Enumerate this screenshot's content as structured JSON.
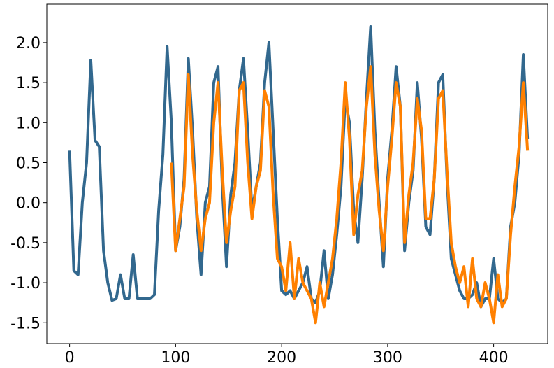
{
  "chart_data": {
    "type": "line",
    "x": [
      0,
      4,
      8,
      12,
      16,
      20,
      24,
      28,
      32,
      36,
      40,
      44,
      48,
      52,
      56,
      60,
      64,
      68,
      72,
      76,
      80,
      84,
      88,
      92,
      96,
      100,
      104,
      108,
      112,
      116,
      120,
      124,
      128,
      132,
      136,
      140,
      144,
      148,
      152,
      156,
      160,
      164,
      168,
      172,
      176,
      180,
      184,
      188,
      192,
      196,
      200,
      204,
      208,
      212,
      216,
      220,
      224,
      228,
      232,
      236,
      240,
      244,
      248,
      252,
      256,
      260,
      264,
      268,
      272,
      276,
      280,
      284,
      288,
      292,
      296,
      300,
      304,
      308,
      312,
      316,
      320,
      324,
      328,
      332,
      336,
      340,
      344,
      348,
      352,
      356,
      360,
      364,
      368,
      372,
      376,
      380,
      384,
      388,
      392,
      396,
      400,
      404,
      408,
      412,
      416,
      420,
      424,
      428,
      432
    ],
    "series": [
      {
        "color": "#32688e",
        "values": [
          0.65,
          -0.85,
          -0.9,
          0.0,
          0.5,
          1.78,
          0.78,
          0.7,
          -0.6,
          -1.0,
          -1.22,
          -1.2,
          -0.9,
          -1.2,
          -1.2,
          -0.65,
          -1.2,
          -1.2,
          -1.2,
          -1.2,
          -1.15,
          -0.1,
          0.6,
          1.95,
          1.0,
          -0.6,
          -0.3,
          0.3,
          1.8,
          0.9,
          -0.2,
          -0.9,
          0.0,
          0.2,
          1.5,
          1.7,
          0.2,
          -0.8,
          0.1,
          0.5,
          1.4,
          1.8,
          0.9,
          -0.1,
          0.2,
          0.5,
          1.5,
          2.0,
          0.9,
          -0.2,
          -1.1,
          -1.15,
          -1.1,
          -1.2,
          -1.1,
          -1.0,
          -0.8,
          -1.2,
          -1.25,
          -1.1,
          -0.6,
          -1.2,
          -0.9,
          -0.4,
          0.2,
          1.3,
          1.0,
          -0.1,
          -0.5,
          0.3,
          1.3,
          2.2,
          0.9,
          0.0,
          -0.8,
          0.3,
          0.9,
          1.7,
          1.2,
          -0.6,
          0.0,
          0.4,
          1.5,
          0.8,
          -0.3,
          -0.4,
          0.3,
          1.5,
          1.6,
          0.3,
          -0.7,
          -0.9,
          -1.1,
          -1.2,
          -1.2,
          -1.15,
          -1.0,
          -1.3,
          -1.2,
          -1.2,
          -0.7,
          -1.2,
          -1.25,
          -1.2,
          -0.3,
          0.0,
          0.6,
          1.85,
          0.8
        ]
      },
      {
        "color": "#ff8000",
        "values": [
          null,
          null,
          null,
          null,
          null,
          null,
          null,
          null,
          null,
          null,
          null,
          null,
          null,
          null,
          null,
          null,
          null,
          null,
          null,
          null,
          null,
          null,
          null,
          null,
          0.5,
          -0.6,
          -0.2,
          0.2,
          1.6,
          0.6,
          -0.1,
          -0.6,
          -0.2,
          0.0,
          1.0,
          1.5,
          0.4,
          -0.5,
          -0.1,
          0.2,
          1.4,
          1.5,
          0.5,
          -0.2,
          0.2,
          0.4,
          1.4,
          1.2,
          0.1,
          -0.7,
          -0.8,
          -1.1,
          -0.5,
          -1.2,
          -0.7,
          -1.0,
          -1.1,
          -1.2,
          -1.5,
          -1.0,
          -1.3,
          -1.0,
          -0.7,
          -0.2,
          0.5,
          1.5,
          0.8,
          -0.4,
          0.1,
          0.4,
          1.2,
          1.7,
          0.6,
          -0.1,
          -0.6,
          0.2,
          0.8,
          1.5,
          1.2,
          -0.5,
          0.1,
          0.5,
          1.3,
          0.9,
          -0.2,
          -0.2,
          0.3,
          1.3,
          1.4,
          0.4,
          -0.5,
          -0.8,
          -1.0,
          -0.8,
          -1.3,
          -0.7,
          -1.2,
          -1.3,
          -1.0,
          -1.2,
          -1.5,
          -0.9,
          -1.3,
          -1.2,
          -0.4,
          0.2,
          0.7,
          1.5,
          0.65
        ]
      }
    ],
    "xlim": [
      -21.5,
      451
    ],
    "ylim": [
      -1.76,
      2.48
    ],
    "xticks": [
      0,
      100,
      200,
      300,
      400
    ],
    "yticks": [
      {
        "value": -1.5,
        "label": "-1.5"
      },
      {
        "value": -1.0,
        "label": "-1.0"
      },
      -0.5,
      {
        "value": 0,
        "label": "0.0"
      },
      0.5,
      {
        "value": 1,
        "label": "1.0"
      },
      1.5,
      {
        "value": 2,
        "label": "2.0"
      }
    ]
  }
}
